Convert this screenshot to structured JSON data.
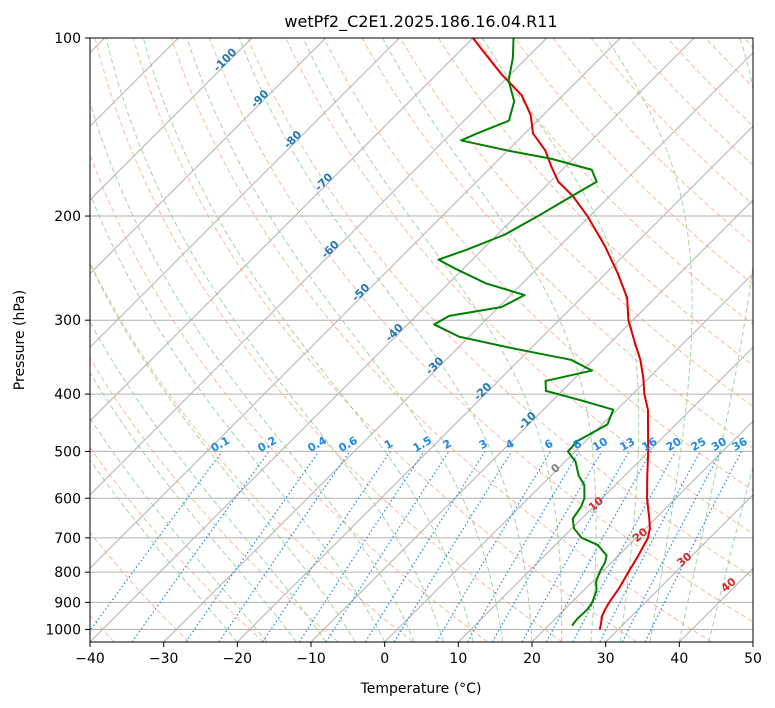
{
  "chart_data": {
    "type": "line",
    "title": "wetPf2_C2E1.2025.186.16.04.R11",
    "xlabel": "Temperature (°C)",
    "ylabel": "Pressure (hPa)",
    "xlim": [
      -40,
      50
    ],
    "ylim": [
      1050,
      100
    ],
    "y_scale": "log",
    "x_ticks": [
      -40,
      -30,
      -20,
      -10,
      0,
      10,
      20,
      30,
      40,
      50
    ],
    "y_ticks": [
      1000,
      900,
      800,
      700,
      600,
      500,
      400,
      300,
      200,
      100
    ],
    "grid": true,
    "series": [
      {
        "role": "temperature",
        "color": "#dd0000",
        "points": [
          [
            1000,
            27.5
          ],
          [
            975,
            26.8
          ],
          [
            950,
            26.0
          ],
          [
            925,
            25.5
          ],
          [
            900,
            25.1
          ],
          [
            875,
            24.8
          ],
          [
            850,
            24.5
          ],
          [
            800,
            23.6
          ],
          [
            750,
            22.7
          ],
          [
            700,
            21.6
          ],
          [
            675,
            20.6
          ],
          [
            650,
            19.2
          ],
          [
            600,
            16.1
          ],
          [
            550,
            13.1
          ],
          [
            500,
            9.9
          ],
          [
            475,
            8.1
          ],
          [
            450,
            6.2
          ],
          [
            425,
            4.2
          ],
          [
            400,
            1.6
          ],
          [
            375,
            -0.8
          ],
          [
            350,
            -3.6
          ],
          [
            325,
            -7.0
          ],
          [
            300,
            -10.6
          ],
          [
            275,
            -13.8
          ],
          [
            250,
            -18.4
          ],
          [
            225,
            -23.8
          ],
          [
            200,
            -30.3
          ],
          [
            185,
            -35.0
          ],
          [
            175,
            -38.9
          ],
          [
            165,
            -41.9
          ],
          [
            155,
            -44.9
          ],
          [
            145,
            -48.9
          ],
          [
            135,
            -51.7
          ],
          [
            125,
            -55.6
          ],
          [
            115,
            -61.3
          ],
          [
            105,
            -67.0
          ],
          [
            100,
            -70.0
          ]
        ]
      },
      {
        "role": "dewpoint",
        "color": "#008000",
        "points": [
          [
            985,
            23.2
          ],
          [
            960,
            23.0
          ],
          [
            925,
            23.1
          ],
          [
            900,
            22.8
          ],
          [
            860,
            21.8
          ],
          [
            830,
            20.5
          ],
          [
            800,
            19.7
          ],
          [
            770,
            19.1
          ],
          [
            750,
            18.4
          ],
          [
            720,
            15.8
          ],
          [
            700,
            12.6
          ],
          [
            675,
            10.3
          ],
          [
            650,
            8.8
          ],
          [
            620,
            8.3
          ],
          [
            600,
            7.6
          ],
          [
            570,
            5.8
          ],
          [
            550,
            3.8
          ],
          [
            520,
            1.4
          ],
          [
            500,
            -1.0
          ],
          [
            480,
            -1.1
          ],
          [
            450,
            0.7
          ],
          [
            425,
            -0.5
          ],
          [
            410,
            -6.1
          ],
          [
            395,
            -12.2
          ],
          [
            380,
            -13.6
          ],
          [
            365,
            -8.7
          ],
          [
            350,
            -13.0
          ],
          [
            335,
            -22.3
          ],
          [
            320,
            -31.3
          ],
          [
            305,
            -36.4
          ],
          [
            295,
            -35.5
          ],
          [
            285,
            -29.6
          ],
          [
            272,
            -28.1
          ],
          [
            260,
            -34.9
          ],
          [
            245,
            -41.3
          ],
          [
            237,
            -44.6
          ],
          [
            228,
            -42.1
          ],
          [
            215,
            -39.0
          ],
          [
            200,
            -37.0
          ],
          [
            185,
            -35.1
          ],
          [
            175,
            -33.7
          ],
          [
            167,
            -36.0
          ],
          [
            160,
            -43.0
          ],
          [
            155,
            -50.0
          ],
          [
            149,
            -57.7
          ],
          [
            145,
            -56.5
          ],
          [
            138,
            -53.9
          ],
          [
            128,
            -55.8
          ],
          [
            118,
            -59.4
          ],
          [
            108,
            -61.9
          ],
          [
            100,
            -64.5
          ]
        ]
      }
    ],
    "mixing_ratio_labels": [
      "0.1",
      "0.2",
      "0.4",
      "0.6",
      "1",
      "1.5",
      "2",
      "3",
      "4",
      "6",
      "8",
      "10",
      "13",
      "16",
      "20",
      "25",
      "30",
      "36"
    ],
    "mixing_ratio_values": [
      0.1,
      0.2,
      0.4,
      0.6,
      1,
      1.5,
      2,
      3,
      4,
      6,
      8,
      10,
      13,
      16,
      20,
      25,
      30,
      36
    ],
    "mixing_ratio_label_pressure": 500,
    "freezing_level_labels": [
      {
        "text": "-100",
        "value": -100
      },
      {
        "text": "-90",
        "value": -90
      },
      {
        "text": "-80",
        "value": -80
      },
      {
        "text": "-70",
        "value": -70
      },
      {
        "text": "-60",
        "value": -60
      },
      {
        "text": "-50",
        "value": -50
      },
      {
        "text": "-40",
        "value": -40
      },
      {
        "text": "-30",
        "value": -30
      },
      {
        "text": "-20",
        "value": -20
      },
      {
        "text": "-10",
        "value": -10
      }
    ],
    "moist_adiabat_labels": [
      {
        "text": "0",
        "value": 0
      },
      {
        "text": "10",
        "value": 10
      },
      {
        "text": "20",
        "value": 20
      },
      {
        "text": "30",
        "value": 30
      },
      {
        "text": "40",
        "value": 40
      }
    ],
    "colors": {
      "dry_adiabat": "#f4a582",
      "moist_adiabat": "#8fc98f",
      "mixing_ratio": "#1e88e5",
      "isotherm": "#000000",
      "isotherm_label": "#1f77b4",
      "moist_label_warm": "#d62728",
      "moist_label_zero": "#808080"
    }
  }
}
